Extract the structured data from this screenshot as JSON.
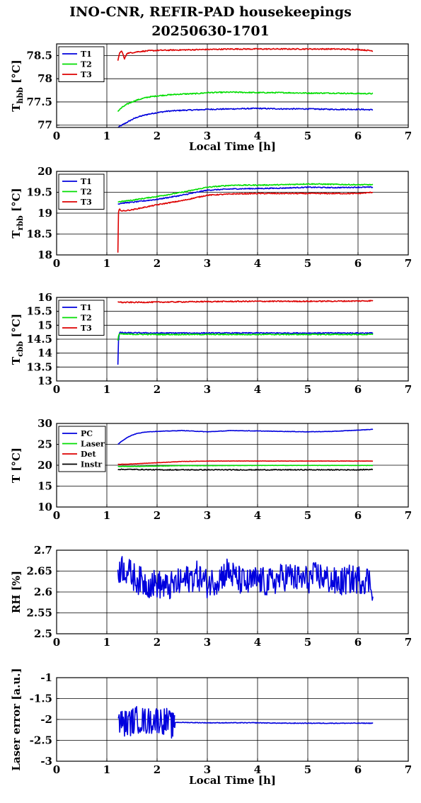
{
  "title": {
    "line1": "INO-CNR, REFIR-PAD housekeepings",
    "line2": "20250630-1701"
  },
  "chart_data": [
    {
      "type": "line",
      "ylabel": "T",
      "ylabel_sub": "hbb",
      "ylabel_unit": " [°C]",
      "xlabel": "Local Time [h]",
      "xlim": [
        0,
        7
      ],
      "ylim": [
        76.95,
        78.75
      ],
      "xticks": [
        "0",
        "1",
        "2",
        "3",
        "4",
        "5",
        "6",
        "7"
      ],
      "yticks": [
        {
          "v": 77,
          "label": "77"
        },
        {
          "v": 77.5,
          "label": "77.5"
        },
        {
          "v": 78,
          "label": "78"
        },
        {
          "v": 78.5,
          "label": "78.5"
        }
      ],
      "grid": true,
      "legend": "top-left",
      "series": [
        {
          "name": "T1",
          "color": "#0000dd",
          "x": [
            1.22,
            1.3,
            1.4,
            1.5,
            1.6,
            1.8,
            2.0,
            2.2,
            2.5,
            2.8,
            3.0,
            3.5,
            4.0,
            4.5,
            5.0,
            5.5,
            6.0,
            6.3
          ],
          "y": [
            76.95,
            77.0,
            77.06,
            77.12,
            77.17,
            77.23,
            77.27,
            77.3,
            77.32,
            77.33,
            77.34,
            77.35,
            77.36,
            77.35,
            77.35,
            77.34,
            77.34,
            77.33
          ],
          "noise": 0.012
        },
        {
          "name": "T2",
          "color": "#00dd00",
          "x": [
            1.22,
            1.3,
            1.4,
            1.5,
            1.6,
            1.8,
            2.0,
            2.2,
            2.5,
            2.8,
            3.0,
            3.5,
            4.0,
            4.5,
            5.0,
            5.5,
            6.0,
            6.3
          ],
          "y": [
            77.3,
            77.38,
            77.45,
            77.5,
            77.54,
            77.6,
            77.63,
            77.65,
            77.67,
            77.68,
            77.7,
            77.71,
            77.7,
            77.7,
            77.69,
            77.69,
            77.68,
            77.68
          ],
          "noise": 0.012
        },
        {
          "name": "T3",
          "color": "#dd0000",
          "x": [
            1.22,
            1.25,
            1.3,
            1.35,
            1.4,
            1.5,
            1.6,
            1.8,
            2.0,
            2.5,
            3.0,
            3.5,
            4.0,
            4.5,
            5.0,
            5.5,
            6.0,
            6.3
          ],
          "y": [
            78.38,
            78.55,
            78.6,
            78.42,
            78.55,
            78.56,
            78.58,
            78.6,
            78.61,
            78.62,
            78.63,
            78.64,
            78.64,
            78.64,
            78.64,
            78.64,
            78.63,
            78.6
          ],
          "noise": 0.012
        }
      ]
    },
    {
      "type": "line",
      "ylabel": "T",
      "ylabel_sub": "rbb",
      "ylabel_unit": " [°C]",
      "xlabel": "",
      "xlim": [
        0,
        7
      ],
      "ylim": [
        18,
        20
      ],
      "xticks": [
        "0",
        "1",
        "2",
        "3",
        "4",
        "5",
        "6",
        "7"
      ],
      "yticks": [
        {
          "v": 18,
          "label": "18"
        },
        {
          "v": 18.5,
          "label": "18.5"
        },
        {
          "v": 19,
          "label": "19"
        },
        {
          "v": 19.5,
          "label": "19.5"
        },
        {
          "v": 20,
          "label": "20"
        }
      ],
      "grid": true,
      "legend": "top-left",
      "series": [
        {
          "name": "T1",
          "color": "#0000dd",
          "x": [
            1.22,
            1.3,
            1.5,
            2.0,
            2.5,
            3.0,
            3.5,
            4.0,
            4.5,
            5.0,
            5.5,
            6.0,
            6.3
          ],
          "y": [
            19.22,
            19.24,
            19.26,
            19.33,
            19.43,
            19.55,
            19.58,
            19.59,
            19.6,
            19.62,
            19.61,
            19.62,
            19.62
          ],
          "noise": 0.012
        },
        {
          "name": "T2",
          "color": "#00dd00",
          "x": [
            1.22,
            1.3,
            1.5,
            2.0,
            2.5,
            3.0,
            3.5,
            4.0,
            4.5,
            5.0,
            5.5,
            6.0,
            6.3
          ],
          "y": [
            19.27,
            19.28,
            19.31,
            19.4,
            19.5,
            19.62,
            19.67,
            19.67,
            19.68,
            19.7,
            19.69,
            19.68,
            19.68
          ],
          "noise": 0.012
        },
        {
          "name": "T3",
          "color": "#dd0000",
          "x": [
            1.22,
            1.222,
            1.23,
            1.25,
            1.3,
            1.5,
            2.0,
            2.5,
            3.0,
            3.5,
            4.0,
            4.5,
            5.0,
            5.5,
            6.0,
            6.3
          ],
          "y": [
            18.05,
            18.65,
            19.0,
            19.1,
            19.05,
            19.08,
            19.2,
            19.3,
            19.43,
            19.46,
            19.47,
            19.47,
            19.47,
            19.47,
            19.47,
            19.5
          ],
          "noise": 0.012
        }
      ]
    },
    {
      "type": "line",
      "ylabel": "T",
      "ylabel_sub": "cbb",
      "ylabel_unit": " [°C]",
      "xlabel": "",
      "xlim": [
        0,
        7
      ],
      "ylim": [
        13,
        16
      ],
      "xticks": [
        "0",
        "1",
        "2",
        "3",
        "4",
        "5",
        "6",
        "7"
      ],
      "yticks": [
        {
          "v": 13,
          "label": "13"
        },
        {
          "v": 13.5,
          "label": "13.5"
        },
        {
          "v": 14,
          "label": "14"
        },
        {
          "v": 14.5,
          "label": "14.5"
        },
        {
          "v": 15,
          "label": "15"
        },
        {
          "v": 15.5,
          "label": "15.5"
        },
        {
          "v": 16,
          "label": "16"
        }
      ],
      "grid": true,
      "legend": "top-left",
      "series": [
        {
          "name": "T1",
          "color": "#0000dd",
          "x": [
            1.22,
            1.23,
            1.25,
            1.3,
            2.0,
            3.0,
            4.0,
            5.0,
            6.0,
            6.3
          ],
          "y": [
            13.6,
            14.4,
            14.75,
            14.73,
            14.72,
            14.72,
            14.72,
            14.72,
            14.72,
            14.72
          ],
          "noise": 0.02
        },
        {
          "name": "T2",
          "color": "#00dd00",
          "x": [
            1.22,
            1.23,
            1.25,
            1.3,
            2.0,
            3.0,
            4.0,
            5.0,
            6.0,
            6.3
          ],
          "y": [
            14.45,
            14.6,
            14.7,
            14.68,
            14.67,
            14.67,
            14.67,
            14.67,
            14.67,
            14.67
          ],
          "noise": 0.02
        },
        {
          "name": "T3",
          "color": "#dd0000",
          "x": [
            1.22,
            1.3,
            2.0,
            3.0,
            4.0,
            5.0,
            6.0,
            6.3
          ],
          "y": [
            15.85,
            15.82,
            15.83,
            15.85,
            15.86,
            15.86,
            15.87,
            15.88
          ],
          "noise": 0.02
        }
      ]
    },
    {
      "type": "line",
      "ylabel": "T [°C]",
      "ylabel_sub": "",
      "ylabel_unit": "",
      "xlabel": "",
      "xlim": [
        0,
        7
      ],
      "ylim": [
        10,
        30
      ],
      "xticks": [
        "0",
        "1",
        "2",
        "3",
        "4",
        "5",
        "6",
        "7"
      ],
      "yticks": [
        {
          "v": 10,
          "label": "10"
        },
        {
          "v": 15,
          "label": "15"
        },
        {
          "v": 20,
          "label": "20"
        },
        {
          "v": 25,
          "label": "25"
        },
        {
          "v": 30,
          "label": "30"
        }
      ],
      "grid": true,
      "legend": "top-left",
      "series": [
        {
          "name": "PC",
          "color": "#0000dd",
          "x": [
            1.22,
            1.3,
            1.4,
            1.5,
            1.6,
            1.8,
            2.0,
            2.5,
            3.0,
            3.5,
            4.0,
            4.5,
            5.0,
            5.5,
            6.0,
            6.3
          ],
          "y": [
            25.0,
            25.8,
            26.6,
            27.2,
            27.6,
            28.0,
            28.1,
            28.3,
            28.0,
            28.3,
            28.2,
            28.1,
            28.0,
            28.1,
            28.4,
            28.6
          ],
          "noise": 0.05
        },
        {
          "name": "Laser",
          "color": "#00dd00",
          "x": [
            1.22,
            1.5,
            2.0,
            2.5,
            3.0,
            4.0,
            5.0,
            6.0,
            6.3
          ],
          "y": [
            19.7,
            19.7,
            19.8,
            19.9,
            19.9,
            19.95,
            19.95,
            19.95,
            19.95
          ],
          "noise": 0.04
        },
        {
          "name": "Det",
          "color": "#dd0000",
          "x": [
            1.22,
            1.5,
            2.0,
            2.5,
            3.0,
            4.0,
            5.0,
            6.0,
            6.3
          ],
          "y": [
            20.2,
            20.3,
            20.6,
            20.9,
            21.0,
            21.0,
            21.0,
            21.0,
            21.0
          ],
          "noise": 0.04
        },
        {
          "name": "Instr",
          "color": "#000000",
          "x": [
            1.22,
            1.5,
            2.0,
            3.0,
            4.0,
            5.0,
            6.0,
            6.3
          ],
          "y": [
            19.0,
            19.0,
            18.9,
            18.9,
            18.9,
            18.9,
            18.9,
            19.0
          ],
          "noise": 0.1
        }
      ]
    },
    {
      "type": "line",
      "ylabel": "RH [%]",
      "ylabel_sub": "",
      "ylabel_unit": "",
      "xlabel": "",
      "xlim": [
        0,
        7
      ],
      "ylim": [
        2.5,
        2.7
      ],
      "xticks": [
        "0",
        "1",
        "2",
        "3",
        "4",
        "5",
        "6",
        "7"
      ],
      "yticks": [
        {
          "v": 2.5,
          "label": "2.5"
        },
        {
          "v": 2.55,
          "label": "2.55"
        },
        {
          "v": 2.6,
          "label": "2.6"
        },
        {
          "v": 2.65,
          "label": "2.65"
        },
        {
          "v": 2.7,
          "label": "2.7"
        }
      ],
      "grid": true,
      "legend": "none",
      "series": [
        {
          "color": "#0000dd",
          "x": [
            1.22,
            1.3,
            1.4,
            1.5,
            1.6,
            1.8,
            2.0,
            2.2,
            2.4,
            2.6,
            2.8,
            3.0,
            3.2,
            3.4,
            3.6,
            3.8,
            4.0,
            4.2,
            4.4,
            4.6,
            4.8,
            5.0,
            5.2,
            5.4,
            5.6,
            5.8,
            6.0,
            6.2,
            6.3
          ],
          "y": [
            2.65,
            2.66,
            2.65,
            2.64,
            2.63,
            2.62,
            2.62,
            2.61,
            2.62,
            2.63,
            2.64,
            2.62,
            2.63,
            2.65,
            2.63,
            2.62,
            2.63,
            2.62,
            2.63,
            2.64,
            2.63,
            2.63,
            2.64,
            2.63,
            2.62,
            2.63,
            2.63,
            2.63,
            2.61
          ],
          "noise": 0.035
        }
      ]
    },
    {
      "type": "line",
      "ylabel": "Laser error [a.u.]",
      "ylabel_sub": "",
      "ylabel_unit": "",
      "xlabel": "Local Time [h]",
      "xlim": [
        0,
        7
      ],
      "ylim": [
        -3,
        -1
      ],
      "xticks": [
        "0",
        "1",
        "2",
        "3",
        "4",
        "5",
        "6",
        "7"
      ],
      "yticks": [
        {
          "v": -3,
          "label": "-3"
        },
        {
          "v": -2.5,
          "label": "-2.5"
        },
        {
          "v": -2,
          "label": "-2"
        },
        {
          "v": -1.5,
          "label": "-1.5"
        },
        {
          "v": -1,
          "label": "-1"
        }
      ],
      "grid": true,
      "legend": "none",
      "series": [
        {
          "color": "#0000dd",
          "x": [
            1.22,
            1.4,
            1.6,
            1.8,
            2.0,
            2.2,
            2.35
          ],
          "y": [
            -2.05,
            -2.1,
            -2.0,
            -2.05,
            -2.0,
            -2.05,
            -2.2
          ],
          "noise": 0.33
        },
        {
          "color": "#0000dd",
          "x": [
            2.35,
            2.36,
            2.4,
            3.0,
            3.5,
            4.0,
            4.5,
            5.0,
            5.5,
            6.0,
            6.3
          ],
          "y": [
            -2.2,
            -2.07,
            -2.07,
            -2.08,
            -2.08,
            -2.08,
            -2.09,
            -2.09,
            -2.09,
            -2.09,
            -2.09
          ],
          "noise": 0.008
        }
      ]
    }
  ]
}
